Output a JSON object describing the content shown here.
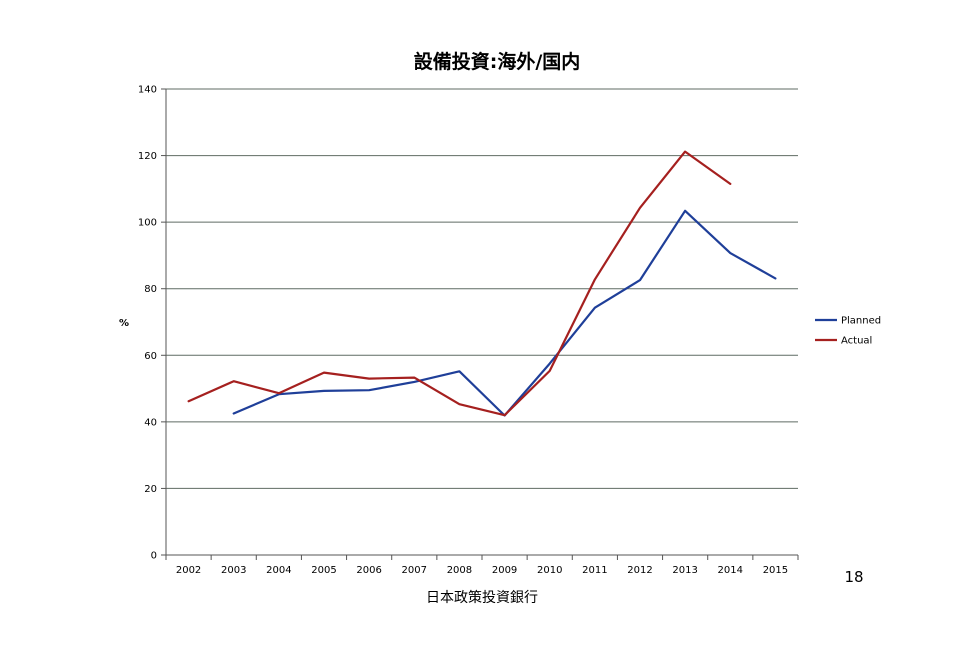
{
  "page_number": "18",
  "chart_data": {
    "type": "line",
    "title": "設備投資:海外/国内",
    "xlabel": "日本政策投資銀行",
    "ylabel": "%",
    "categories": [
      "2002",
      "2003",
      "2004",
      "2005",
      "2006",
      "2007",
      "2008",
      "2009",
      "2010",
      "2011",
      "2012",
      "2013",
      "2014",
      "2015"
    ],
    "y_ticks": [
      "0",
      "20",
      "40",
      "60",
      "80",
      "100",
      "120",
      "140"
    ],
    "ylim": [
      0,
      140
    ],
    "grid": true,
    "legend_position": "right",
    "series": [
      {
        "name": "Planned",
        "color": "#1f3f99",
        "values": [
          null,
          42.5,
          48.3,
          49.3,
          49.5,
          52.0,
          55.2,
          41.9,
          57.5,
          74.3,
          82.6,
          103.4,
          90.7,
          83.1
        ]
      },
      {
        "name": "Actual",
        "color": "#a5201f",
        "values": [
          46.2,
          52.2,
          48.6,
          54.8,
          53.0,
          53.3,
          45.3,
          42.0,
          55.3,
          82.8,
          104.3,
          121.2,
          111.5,
          null
        ]
      }
    ]
  }
}
